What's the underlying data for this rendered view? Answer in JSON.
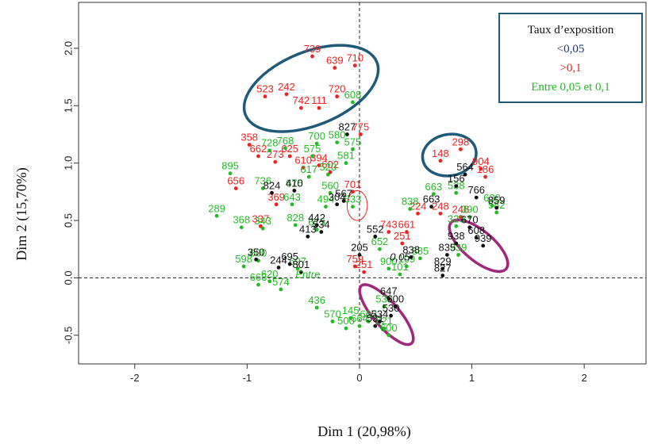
{
  "chart_data": {
    "type": "scatter",
    "xlabel": "Dim 1 (20,98%)",
    "ylabel": "Dim 2 (15,70%)",
    "xlim": [
      -2.5,
      2.55
    ],
    "ylim": [
      -0.75,
      2.4
    ],
    "x_ticks": [
      -2,
      -1,
      0,
      1,
      2
    ],
    "y_ticks": [
      -0.5,
      0.0,
      0.5,
      1.0,
      1.5,
      2.0
    ],
    "x_tick_labels": [
      "-2",
      "-1",
      "0",
      "1",
      "2"
    ],
    "y_tick_labels": [
      "-0.5",
      "0.0",
      "0.5",
      "1.0",
      "1.5",
      "2.0"
    ],
    "legend": {
      "title": "Taux d’exposition",
      "position": "top-right",
      "entries": [
        {
          "label": "<0,05",
          "color": "#1f3a6e"
        },
        {
          "label": ">0,1",
          "color": "#ee2222"
        },
        {
          "label": "Entre 0,05 et 0,1",
          "color": "#22bb22"
        }
      ]
    },
    "colors": {
      "low": "#111111",
      "high": "#ee2222",
      "mid": "#22bb22",
      "ellipse_blue": "#1f5a78",
      "ellipse_purple": "#a0287a"
    },
    "series": [
      {
        "color": "#ee2222",
        "points": [
          {
            "x": -0.42,
            "y": 1.93,
            "label": "739"
          },
          {
            "x": -0.22,
            "y": 1.83,
            "label": "639"
          },
          {
            "x": -0.04,
            "y": 1.85,
            "label": "710"
          },
          {
            "x": -0.84,
            "y": 1.58,
            "label": "523"
          },
          {
            "x": -0.65,
            "y": 1.6,
            "label": "242"
          },
          {
            "x": -0.2,
            "y": 1.58,
            "label": "720"
          },
          {
            "x": -0.52,
            "y": 1.48,
            "label": "742"
          },
          {
            "x": -0.36,
            "y": 1.48,
            "label": "111"
          },
          {
            "x": 0.01,
            "y": 1.25,
            "label": "775"
          },
          {
            "x": -0.98,
            "y": 1.16,
            "label": "358"
          },
          {
            "x": -0.9,
            "y": 1.06,
            "label": "662"
          },
          {
            "x": -0.62,
            "y": 1.06,
            "label": "625"
          },
          {
            "x": -0.75,
            "y": 1.01,
            "label": "273"
          },
          {
            "x": -0.36,
            "y": 0.98,
            "label": "394"
          },
          {
            "x": -0.5,
            "y": 0.96,
            "label": "610"
          },
          {
            "x": -0.26,
            "y": 0.92,
            "label": "602"
          },
          {
            "x": 0.9,
            "y": 1.12,
            "label": "298"
          },
          {
            "x": 0.72,
            "y": 1.02,
            "label": "148"
          },
          {
            "x": 1.08,
            "y": 0.95,
            "label": "904"
          },
          {
            "x": 1.12,
            "y": 0.88,
            "label": "186"
          },
          {
            "x": -1.1,
            "y": 0.78,
            "label": "656"
          },
          {
            "x": -0.74,
            "y": 0.64,
            "label": "369"
          },
          {
            "x": -0.06,
            "y": 0.75,
            "label": "701"
          },
          {
            "x": -0.88,
            "y": 0.45,
            "label": "337"
          },
          {
            "x": 0.52,
            "y": 0.56,
            "label": "224"
          },
          {
            "x": 0.72,
            "y": 0.56,
            "label": "248"
          },
          {
            "x": 0.9,
            "y": 0.53,
            "label": "248"
          },
          {
            "x": 0.26,
            "y": 0.4,
            "label": "743"
          },
          {
            "x": 0.42,
            "y": 0.4,
            "label": "661"
          },
          {
            "x": 0.38,
            "y": 0.3,
            "label": "251"
          },
          {
            "x": -0.04,
            "y": 0.1,
            "label": "759"
          },
          {
            "x": 0.04,
            "y": 0.05,
            "label": "251"
          }
        ]
      },
      {
        "color": "#22bb22",
        "points": [
          {
            "x": -0.06,
            "y": 1.53,
            "label": "608"
          },
          {
            "x": -0.2,
            "y": 1.18,
            "label": "580"
          },
          {
            "x": -0.38,
            "y": 1.17,
            "label": "700"
          },
          {
            "x": -0.66,
            "y": 1.13,
            "label": "768"
          },
          {
            "x": -0.8,
            "y": 1.11,
            "label": "728"
          },
          {
            "x": -0.06,
            "y": 1.12,
            "label": "575"
          },
          {
            "x": -0.42,
            "y": 1.06,
            "label": "575"
          },
          {
            "x": -0.12,
            "y": 1.0,
            "label": "581"
          },
          {
            "x": -0.28,
            "y": 0.9,
            "label": "520"
          },
          {
            "x": -0.45,
            "y": 0.88,
            "label": "617"
          },
          {
            "x": -1.15,
            "y": 0.91,
            "label": "895"
          },
          {
            "x": -0.86,
            "y": 0.78,
            "label": "736"
          },
          {
            "x": -0.26,
            "y": 0.74,
            "label": "560"
          },
          {
            "x": -0.58,
            "y": 0.76,
            "label": "675"
          },
          {
            "x": -0.3,
            "y": 0.62,
            "label": "494"
          },
          {
            "x": -0.6,
            "y": 0.64,
            "label": "643"
          },
          {
            "x": -0.06,
            "y": 0.62,
            "label": "633"
          },
          {
            "x": -1.27,
            "y": 0.54,
            "label": "289"
          },
          {
            "x": -1.05,
            "y": 0.44,
            "label": "368"
          },
          {
            "x": -0.86,
            "y": 0.43,
            "label": "343"
          },
          {
            "x": -0.57,
            "y": 0.46,
            "label": "828"
          },
          {
            "x": -0.38,
            "y": 0.42,
            "label": "615"
          },
          {
            "x": 0.45,
            "y": 0.6,
            "label": "838"
          },
          {
            "x": 0.66,
            "y": 0.73,
            "label": "663"
          },
          {
            "x": 0.86,
            "y": 0.74,
            "label": "538"
          },
          {
            "x": 0.98,
            "y": 0.53,
            "label": "390"
          },
          {
            "x": 1.18,
            "y": 0.63,
            "label": "630"
          },
          {
            "x": 1.22,
            "y": 0.57,
            "label": "582"
          },
          {
            "x": 0.86,
            "y": 0.45,
            "label": "320"
          },
          {
            "x": 0.18,
            "y": 0.25,
            "label": "652"
          },
          {
            "x": 0.88,
            "y": 0.2,
            "label": "939"
          },
          {
            "x": 0.54,
            "y": 0.17,
            "label": "885"
          },
          {
            "x": -0.9,
            "y": 0.15,
            "label": "600"
          },
          {
            "x": -1.03,
            "y": 0.1,
            "label": "598"
          },
          {
            "x": -0.55,
            "y": 0.08,
            "label": "697"
          },
          {
            "x": 0.42,
            "y": 0.1,
            "label": "109"
          },
          {
            "x": 0.26,
            "y": 0.08,
            "label": "900"
          },
          {
            "x": 0.36,
            "y": 0.03,
            "label": "101"
          },
          {
            "x": -0.8,
            "y": -0.03,
            "label": "620"
          },
          {
            "x": -0.9,
            "y": -0.06,
            "label": "663"
          },
          {
            "x": -0.7,
            "y": -0.1,
            "label": "574"
          },
          {
            "x": -0.38,
            "y": -0.26,
            "label": "436"
          },
          {
            "x": -0.08,
            "y": -0.35,
            "label": "145"
          },
          {
            "x": 0.22,
            "y": -0.25,
            "label": "533"
          },
          {
            "x": 0.08,
            "y": -0.38,
            "label": "662"
          },
          {
            "x": 0.0,
            "y": -0.42,
            "label": "664"
          },
          {
            "x": -0.12,
            "y": -0.44,
            "label": "500"
          },
          {
            "x": -0.24,
            "y": -0.38,
            "label": "570"
          },
          {
            "x": 0.26,
            "y": -0.5,
            "label": "600"
          },
          {
            "x": 0.22,
            "y": -0.44,
            "label": "621"
          }
        ]
      },
      {
        "color": "#111111",
        "points": [
          {
            "x": -0.11,
            "y": 1.25,
            "label": "827"
          },
          {
            "x": 0.94,
            "y": 0.9,
            "label": "564"
          },
          {
            "x": -0.78,
            "y": 0.74,
            "label": "824"
          },
          {
            "x": -0.58,
            "y": 0.76,
            "label": "410"
          },
          {
            "x": -0.2,
            "y": 0.64,
            "label": "304"
          },
          {
            "x": -0.14,
            "y": 0.67,
            "label": "567"
          },
          {
            "x": 0.86,
            "y": 0.8,
            "label": "156"
          },
          {
            "x": 1.04,
            "y": 0.7,
            "label": "766"
          },
          {
            "x": 1.22,
            "y": 0.61,
            "label": "859"
          },
          {
            "x": 0.64,
            "y": 0.62,
            "label": "663"
          },
          {
            "x": 0.98,
            "y": 0.44,
            "label": "670"
          },
          {
            "x": 1.04,
            "y": 0.35,
            "label": "608"
          },
          {
            "x": 1.1,
            "y": 0.28,
            "label": "939"
          },
          {
            "x": 0.86,
            "y": 0.3,
            "label": "938"
          },
          {
            "x": -0.38,
            "y": 0.46,
            "label": "442"
          },
          {
            "x": -0.34,
            "y": 0.4,
            "label": "534"
          },
          {
            "x": -0.46,
            "y": 0.36,
            "label": "413"
          },
          {
            "x": 0.14,
            "y": 0.36,
            "label": "552"
          },
          {
            "x": 0.0,
            "y": 0.2,
            "label": "205"
          },
          {
            "x": 0.46,
            "y": 0.18,
            "label": "838"
          },
          {
            "x": 0.78,
            "y": 0.2,
            "label": "835"
          },
          {
            "x": 0.74,
            "y": 0.08,
            "label": "829"
          },
          {
            "x": 0.74,
            "y": 0.02,
            "label": "827"
          },
          {
            "x": -0.92,
            "y": 0.16,
            "label": "350"
          },
          {
            "x": -0.62,
            "y": 0.12,
            "label": "695"
          },
          {
            "x": -0.72,
            "y": 0.09,
            "label": "244"
          },
          {
            "x": -0.52,
            "y": 0.05,
            "label": "801"
          },
          {
            "x": 0.26,
            "y": -0.18,
            "label": "647"
          },
          {
            "x": 0.32,
            "y": -0.25,
            "label": "600"
          },
          {
            "x": 0.28,
            "y": -0.33,
            "label": "530"
          },
          {
            "x": 0.18,
            "y": -0.38,
            "label": "534"
          },
          {
            "x": 0.14,
            "y": -0.42,
            "label": "531"
          }
        ]
      }
    ],
    "annotations": [
      {
        "text": "0,05",
        "x": 0.36,
        "y": 0.15,
        "color": "#111111"
      },
      {
        "text": "Entre",
        "x": -0.46,
        "y": 0.0,
        "color": "#22bb22"
      }
    ],
    "ellipses": [
      {
        "cx": -0.43,
        "cy": 1.65,
        "rx": 0.63,
        "ry": 0.32,
        "angle": -22,
        "color": "#1f5a78"
      },
      {
        "cx": 0.8,
        "cy": 1.07,
        "rx": 0.24,
        "ry": 0.18,
        "angle": -10,
        "color": "#1f5a78"
      },
      {
        "cx": 1.06,
        "cy": 0.28,
        "rx": 0.32,
        "ry": 0.13,
        "angle": 40,
        "color": "#a0287a"
      },
      {
        "cx": 0.24,
        "cy": -0.32,
        "rx": 0.34,
        "ry": 0.11,
        "angle": 49,
        "color": "#a0287a"
      },
      {
        "cx": -0.02,
        "cy": 0.63,
        "rx": 0.09,
        "ry": 0.13,
        "angle": 0,
        "color": "#ee2222"
      }
    ]
  }
}
